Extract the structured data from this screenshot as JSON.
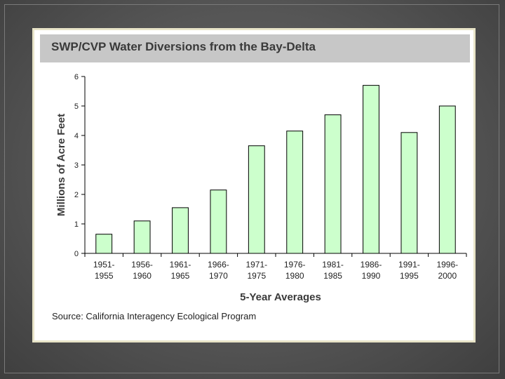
{
  "chart_data": {
    "type": "bar",
    "title": "SWP/CVP Water Diversions from the Bay-Delta",
    "xlabel": "5-Year Averages",
    "ylabel": "Millions of Acre Feet",
    "ylim": [
      0,
      6
    ],
    "yticks": [
      "0",
      "1",
      "2",
      "3",
      "4",
      "5",
      "6"
    ],
    "categories": [
      [
        "1951-",
        "1955"
      ],
      [
        "1956-",
        "1960"
      ],
      [
        "1961-",
        "1965"
      ],
      [
        "1966-",
        "1970"
      ],
      [
        "1971-",
        "1975"
      ],
      [
        "1976-",
        "1980"
      ],
      [
        "1981-",
        "1985"
      ],
      [
        "1986-",
        "1990"
      ],
      [
        "1991-",
        "1995"
      ],
      [
        "1996-",
        "2000"
      ]
    ],
    "values": [
      0.65,
      1.1,
      1.55,
      2.15,
      3.65,
      4.15,
      4.7,
      5.7,
      4.1,
      5.0
    ],
    "source": "Source: California Interagency Ecological Program"
  },
  "colors": {
    "bar_fill": "#ccffcc",
    "bar_stroke": "#000000",
    "title_bar": "#c7c7c7"
  }
}
